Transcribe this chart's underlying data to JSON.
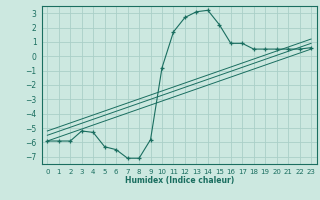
{
  "xlabel": "Humidex (Indice chaleur)",
  "background_color": "#cce8e0",
  "grid_color": "#aacfc8",
  "line_color": "#1a6e60",
  "xlim": [
    -0.5,
    23.5
  ],
  "ylim": [
    -7.5,
    3.5
  ],
  "yticks": [
    3,
    2,
    1,
    0,
    -1,
    -2,
    -3,
    -4,
    -5,
    -6,
    -7
  ],
  "xticks": [
    0,
    1,
    2,
    3,
    4,
    5,
    6,
    7,
    8,
    9,
    10,
    11,
    12,
    13,
    14,
    15,
    16,
    17,
    18,
    19,
    20,
    21,
    22,
    23
  ],
  "curve1_x": [
    0,
    1,
    2,
    3,
    4,
    5,
    6,
    7,
    8,
    9,
    10,
    11,
    12,
    13,
    14,
    15,
    16,
    17,
    18,
    19,
    20,
    21,
    22,
    23
  ],
  "curve1_y": [
    -5.9,
    -5.9,
    -5.9,
    -5.2,
    -5.3,
    -6.3,
    -6.5,
    -7.1,
    -7.1,
    -5.8,
    -0.8,
    1.7,
    2.7,
    3.1,
    3.2,
    2.2,
    0.9,
    0.9,
    0.5,
    0.5,
    0.5,
    0.5,
    0.5,
    0.6
  ],
  "line1_x": [
    0,
    23
  ],
  "line1_y": [
    -5.9,
    0.5
  ],
  "line2_x": [
    0,
    23
  ],
  "line2_y": [
    -5.5,
    0.9
  ],
  "line3_x": [
    0,
    23
  ],
  "line3_y": [
    -5.2,
    1.2
  ]
}
